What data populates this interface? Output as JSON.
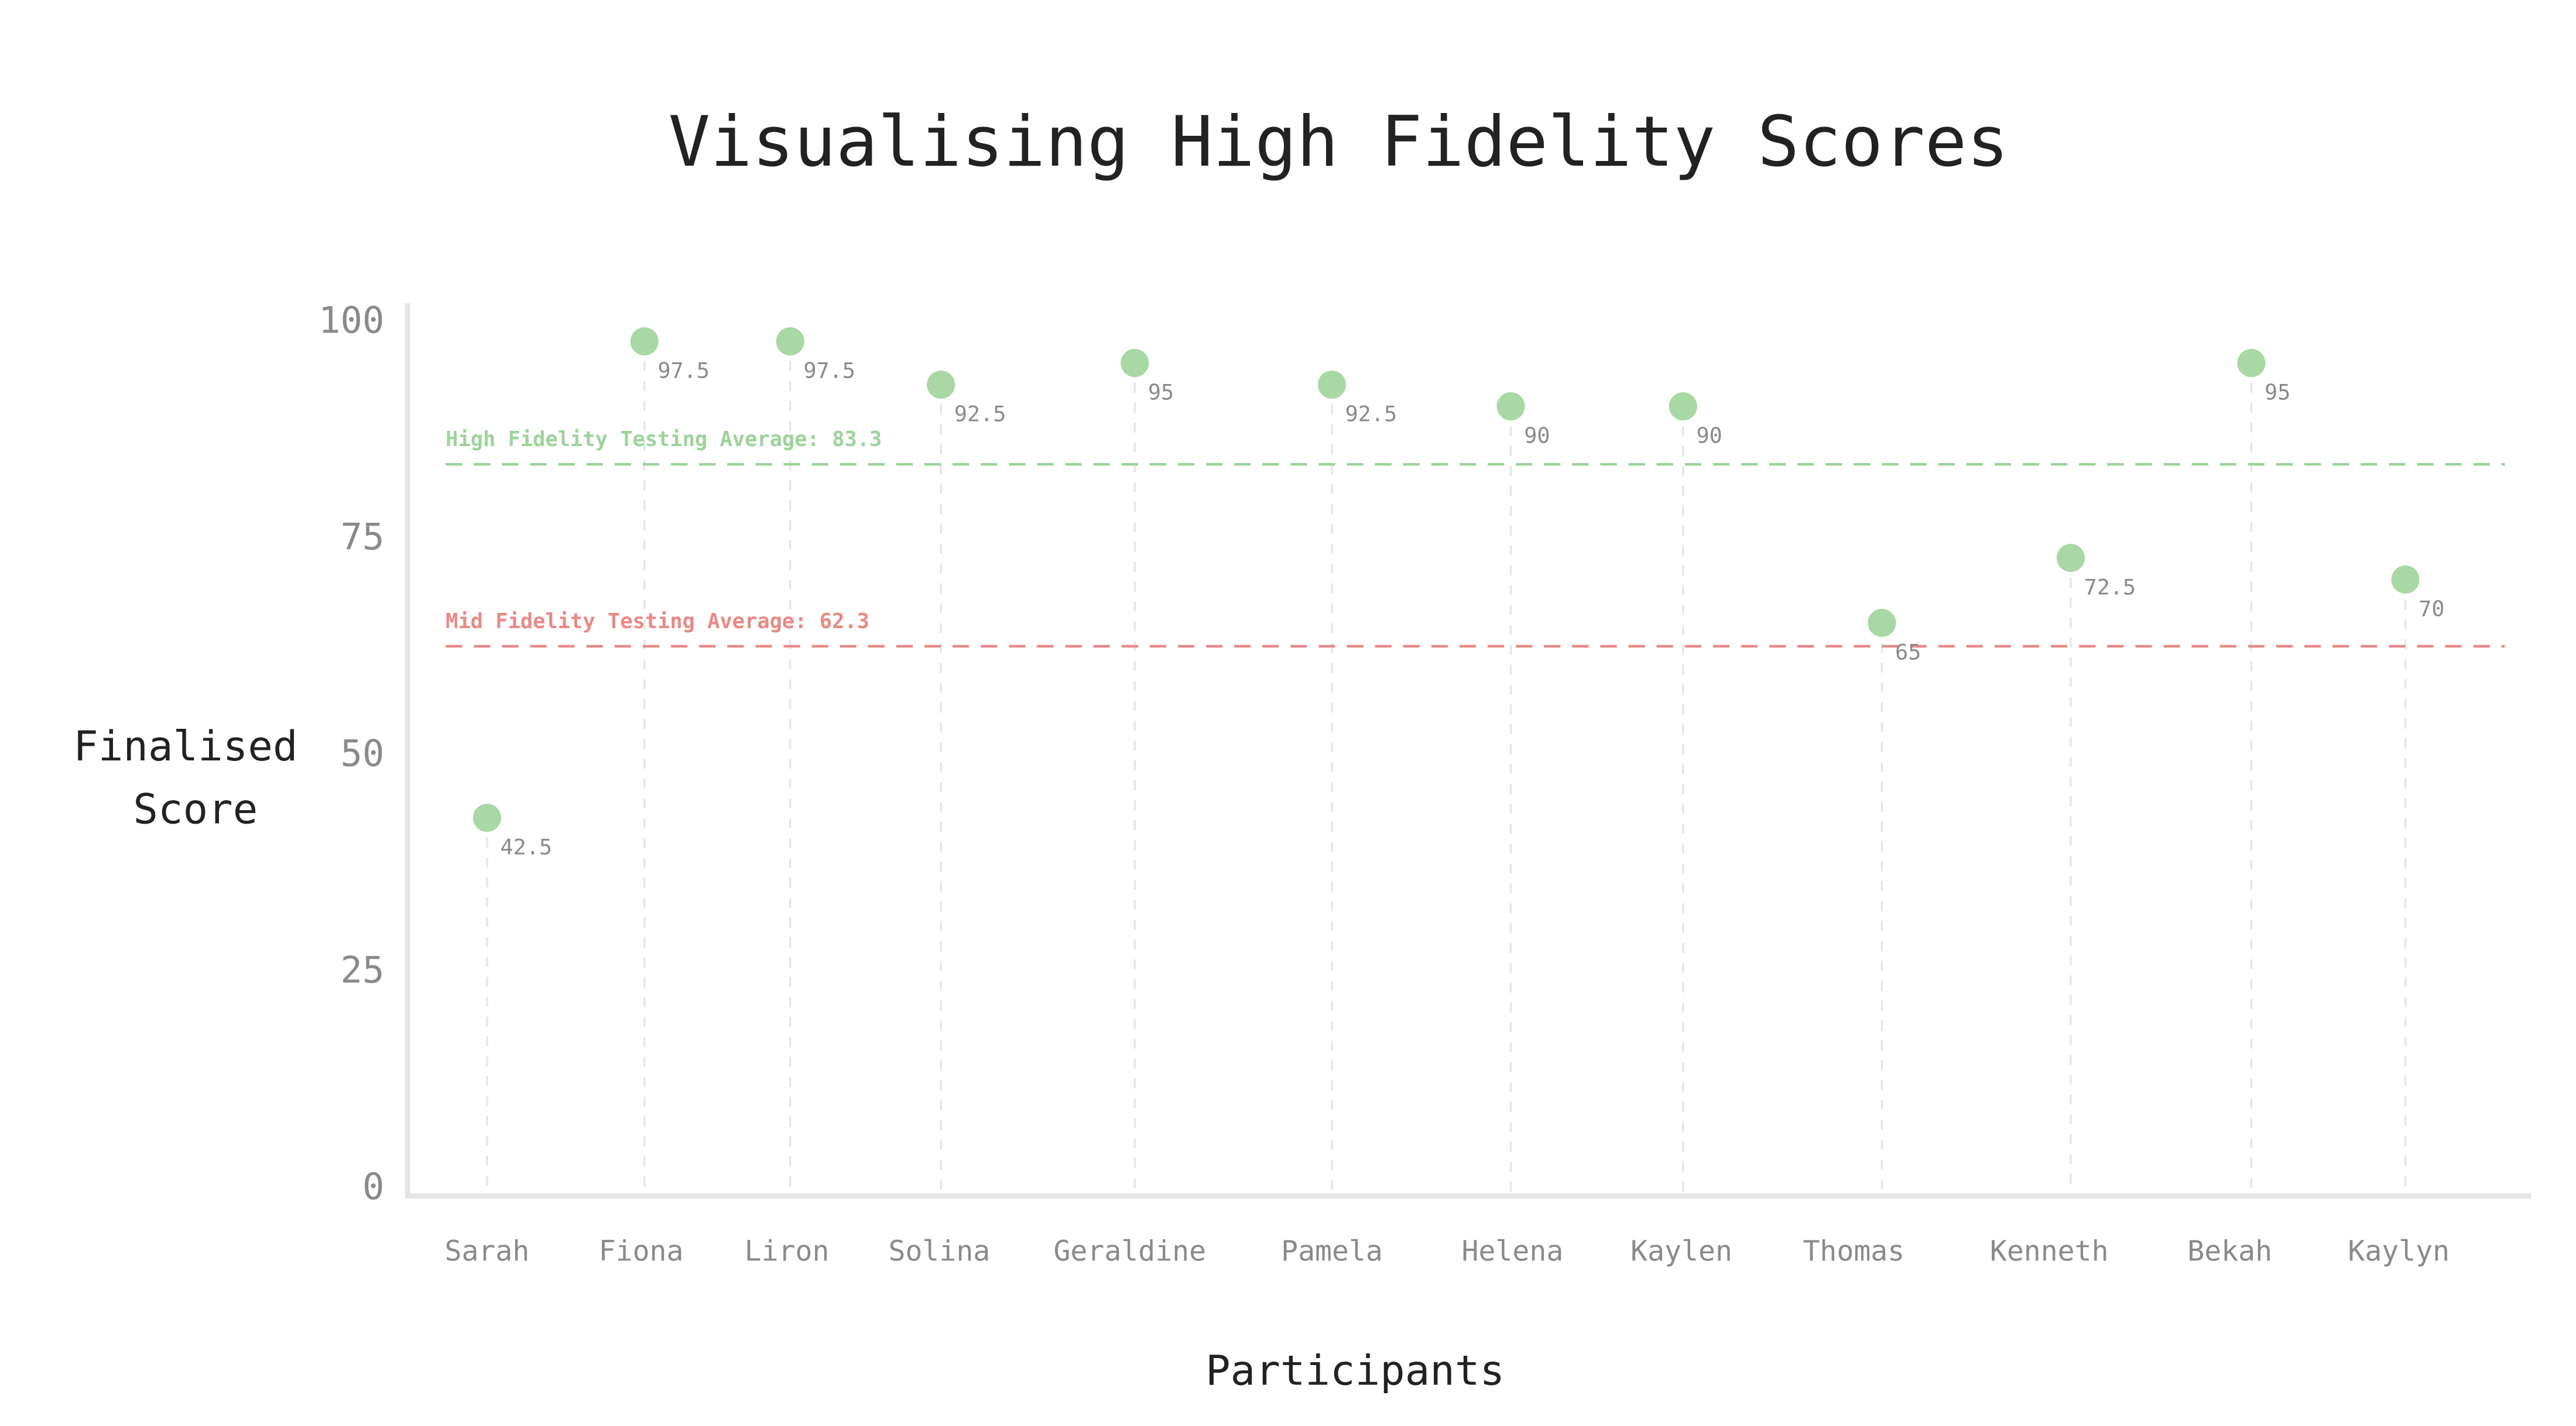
{
  "chart_data": {
    "type": "scatter",
    "title": "Visualising High Fidelity Scores",
    "xlabel": "Participants",
    "ylabel": [
      "Finalised",
      "Score"
    ],
    "categories": [
      "Sarah",
      "Fiona",
      "Liron",
      "Solina",
      "Geraldine",
      "Pamela",
      "Helena",
      "Kaylen",
      "Thomas",
      "Kenneth",
      "Bekah",
      "Kaylyn"
    ],
    "series": [
      {
        "values": [
          42.5,
          97.5,
          97.5,
          92.5,
          95,
          92.5,
          90,
          90,
          65,
          72.5,
          95,
          70
        ],
        "labels": [
          "42.5",
          "97.5",
          "97.5",
          "92.5",
          "95",
          "92.5",
          "90",
          "90",
          "65",
          "72.5",
          "95",
          "70"
        ]
      }
    ],
    "yticks": [
      0,
      25,
      50,
      75,
      100
    ],
    "ylim": [
      0,
      100
    ],
    "grid": false,
    "reference_lines": [
      {
        "label": "High Fidelity Testing Average: 83.3",
        "value": 83.3,
        "color": "#9ed39b"
      },
      {
        "label": "Mid Fidelity Testing Average: 62.3",
        "value": 62.3,
        "color": "#e88a86"
      }
    ],
    "colors": {
      "point": "#a8d8a4",
      "axis": "#e4e4e4",
      "stem": "#e6e6e6"
    }
  }
}
